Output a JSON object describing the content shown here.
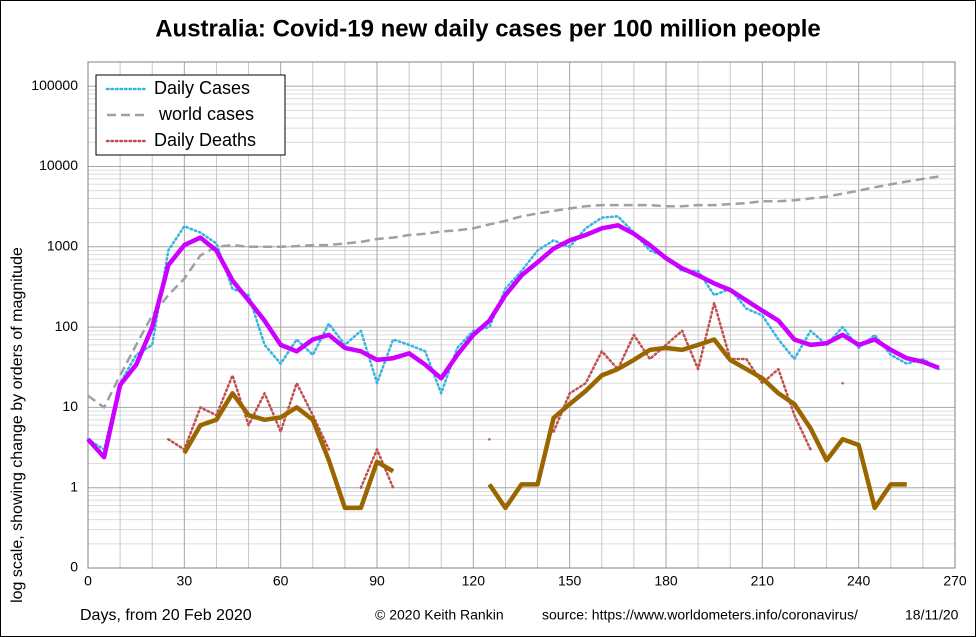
{
  "chart_data": {
    "type": "line",
    "title": "Australia: Covid-19 new daily cases per 100 million people",
    "x_label": "Days, from 20 Feb 2020",
    "y_label": "log scale, showing change by orders of magnitude",
    "annotations": [
      "© 2020  Keith Rankin",
      "source:  https://www.worldometers.info/coronavirus/",
      "18/11/20"
    ],
    "log_y": true,
    "grid": true,
    "legend": "upper left",
    "xlim": [
      0,
      270
    ],
    "xticks": [
      0,
      30,
      60,
      90,
      120,
      150,
      180,
      210,
      240,
      270
    ],
    "ylim": [
      0.1,
      200000
    ],
    "yticks": [
      {
        "value": 0.1,
        "label": "0"
      },
      1,
      10,
      100,
      1000,
      10000,
      100000
    ],
    "x": [
      0,
      5,
      10,
      15,
      20,
      25,
      30,
      35,
      40,
      45,
      50,
      55,
      60,
      65,
      70,
      75,
      80,
      85,
      90,
      95,
      100,
      105,
      110,
      115,
      120,
      125,
      130,
      135,
      140,
      145,
      150,
      155,
      160,
      165,
      170,
      175,
      180,
      185,
      190,
      195,
      200,
      205,
      210,
      215,
      220,
      225,
      230,
      235,
      240,
      245,
      250,
      255,
      260,
      265
    ],
    "series": [
      {
        "name": "Daily Cases",
        "color": "#33b5e0",
        "style": "dotted",
        "width": 2.5,
        "values": [
          4,
          3,
          20,
          45,
          60,
          900,
          1800,
          1500,
          1100,
          300,
          250,
          60,
          35,
          70,
          45,
          110,
          60,
          90,
          20,
          70,
          60,
          50,
          15,
          55,
          90,
          100,
          300,
          500,
          900,
          1200,
          1000,
          1700,
          2300,
          2400,
          1500,
          900,
          750,
          500,
          500,
          250,
          300,
          170,
          140,
          70,
          40,
          90,
          60,
          100,
          55,
          80,
          45,
          35,
          40,
          30
        ]
      },
      {
        "name": " world cases",
        "color": "#a0a0a0",
        "style": "dashed",
        "width": 2.5,
        "values": [
          14,
          10,
          25,
          60,
          140,
          250,
          400,
          780,
          1000,
          1050,
          1000,
          1000,
          1000,
          1020,
          1050,
          1050,
          1100,
          1150,
          1250,
          1300,
          1400,
          1450,
          1550,
          1600,
          1700,
          1900,
          2100,
          2400,
          2600,
          2800,
          3000,
          3200,
          3300,
          3300,
          3300,
          3300,
          3200,
          3200,
          3300,
          3300,
          3400,
          3500,
          3700,
          3700,
          3800,
          4000,
          4200,
          4600,
          5000,
          5500,
          6000,
          6500,
          7000,
          7500
        ]
      },
      {
        "name": "Daily Deaths",
        "color": "#c0504d",
        "style": "dotted",
        "width": 2.5,
        "values": [
          null,
          null,
          null,
          null,
          null,
          4,
          3,
          10,
          8,
          25,
          6,
          15,
          5,
          20,
          8,
          3,
          null,
          1,
          3,
          1,
          null,
          null,
          null,
          null,
          null,
          4,
          null,
          null,
          null,
          5,
          15,
          20,
          50,
          30,
          80,
          40,
          60,
          90,
          30,
          200,
          40,
          40,
          20,
          30,
          8,
          3,
          null,
          20,
          null,
          null,
          null,
          null,
          null,
          null
        ]
      },
      {
        "color": "#cc00ff",
        "style": "solid",
        "width": 4.5,
        "values": [
          4,
          2.4,
          19,
          34,
          100,
          590,
          1050,
          1300,
          900,
          380,
          215,
          120,
          60,
          50,
          70,
          80,
          55,
          50,
          39,
          41,
          47,
          34,
          23,
          45,
          80,
          120,
          250,
          440,
          640,
          950,
          1200,
          1400,
          1700,
          1850,
          1450,
          1050,
          720,
          540,
          440,
          350,
          290,
          215,
          160,
          120,
          70,
          60,
          63,
          80,
          60,
          70,
          52,
          41,
          37,
          31
        ]
      },
      {
        "color": "#996600",
        "style": "solid",
        "width": 4.5,
        "values": [
          null,
          null,
          null,
          null,
          null,
          null,
          2.7,
          6,
          7,
          15,
          8,
          7,
          7.5,
          10,
          7,
          2.2,
          0.56,
          0.56,
          2.1,
          1.6,
          null,
          null,
          null,
          null,
          null,
          1.1,
          0.56,
          1.1,
          1.1,
          7.4,
          11,
          16,
          25,
          30,
          39,
          52,
          55,
          52,
          60,
          70,
          39,
          30,
          23,
          15,
          11,
          5.5,
          2.2,
          4,
          3.4,
          0.56,
          1.1,
          1.1,
          null,
          null
        ]
      }
    ]
  }
}
